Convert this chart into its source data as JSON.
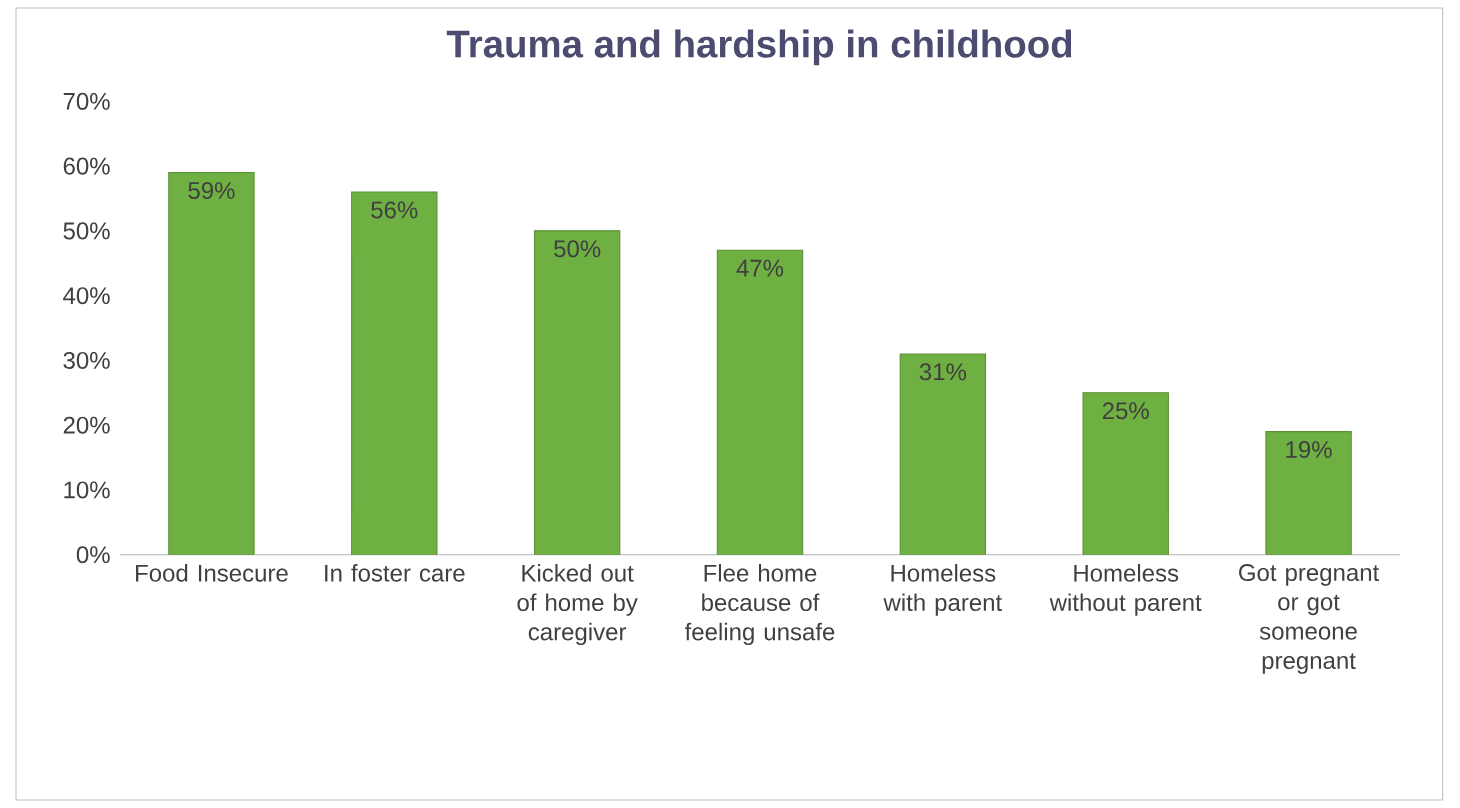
{
  "chart_data": {
    "type": "bar",
    "title": "Trauma and hardship in childhood",
    "categories": [
      "Food Insecure",
      "In foster care",
      "Kicked out of home by caregiver",
      "Flee home because of feeling unsafe",
      "Homeless with parent",
      "Homeless without parent",
      "Got pregnant or got someone pregnant"
    ],
    "values": [
      59,
      56,
      50,
      47,
      31,
      25,
      19
    ],
    "value_labels": [
      "59%",
      "56%",
      "50%",
      "47%",
      "31%",
      "25%",
      "19%"
    ],
    "color": "#6fb043",
    "ylim": [
      0,
      70
    ],
    "yticks": [
      {
        "value": 0,
        "label": "0%"
      },
      {
        "value": 10,
        "label": "10%"
      },
      {
        "value": 20,
        "label": "20%"
      },
      {
        "value": 30,
        "label": "30%"
      },
      {
        "value": 40,
        "label": "40%"
      },
      {
        "value": 50,
        "label": "50%"
      },
      {
        "value": 60,
        "label": "60%"
      },
      {
        "value": 70,
        "label": "70%"
      }
    ]
  }
}
